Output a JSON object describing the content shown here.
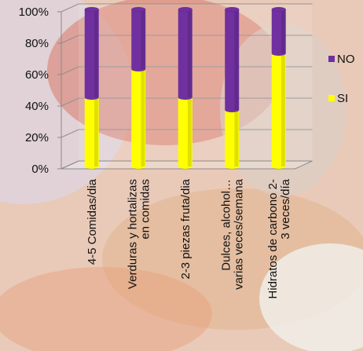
{
  "chart_data": {
    "type": "bar",
    "stacked": true,
    "percent_axis": true,
    "categories": [
      [
        "4-5 Comidas/dia"
      ],
      [
        "Verduras y hortalizas",
        "en comidas"
      ],
      [
        "2-3 piezas fruta/dia"
      ],
      [
        "Dulces, alcohol…",
        "varias veces/semana"
      ],
      [
        "Hidratos de carbono 2-",
        "3 veces/día"
      ]
    ],
    "series": [
      {
        "name": "SI",
        "color": "#FFFF00",
        "values": [
          44,
          62,
          44,
          36,
          72
        ]
      },
      {
        "name": "NO",
        "color": "#7030A0",
        "values": [
          56,
          38,
          56,
          64,
          28
        ]
      }
    ],
    "y_ticks": [
      "0%",
      "20%",
      "40%",
      "60%",
      "80%",
      "100%"
    ],
    "ylim": [
      0,
      100
    ],
    "legend_position": "right",
    "grid": true
  }
}
